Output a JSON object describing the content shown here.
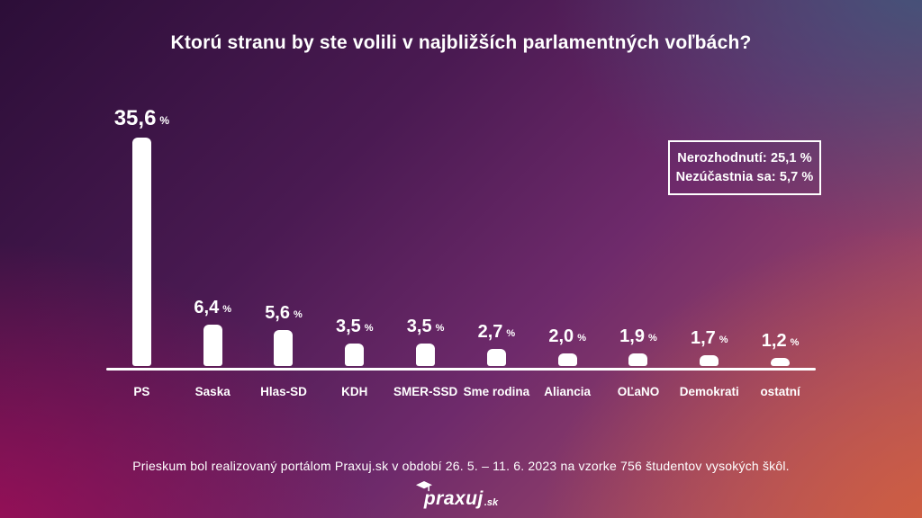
{
  "title": "Ktorú stranu by ste volili v najbližších parlamentných voľbách?",
  "chart_data": {
    "type": "bar",
    "title": "Ktorú stranu by ste volili v najbližších parlamentných voľbách?",
    "categories": [
      "PS",
      "Saska",
      "Hlas-SD",
      "KDH",
      "SMER-SSD",
      "Sme rodina",
      "Aliancia",
      "OĽaNO",
      "Demokrati",
      "ostatní"
    ],
    "values": [
      35.6,
      6.4,
      5.6,
      3.5,
      3.5,
      2.7,
      2.0,
      1.9,
      1.7,
      1.2
    ],
    "value_labels": [
      "35,6",
      "6,4",
      "5,6",
      "3,5",
      "3,5",
      "2,7",
      "2,0",
      "1,9",
      "1,7",
      "1,2"
    ],
    "unit": "%",
    "ylim": [
      0,
      40
    ],
    "grid": false,
    "legend_position": "top-right",
    "bar_color": "#ffffff",
    "annotations": [
      "Nerozhodnutí: 25,1 %",
      "Nezúčastnia sa: 5,7 %"
    ]
  },
  "legend_box": {
    "line1": "Nerozhodnutí: 25,1 %",
    "line2": "Nezúčastnia sa: 5,7 %"
  },
  "footer": {
    "note": "Prieskum bol realizovaný portálom Praxuj.sk v období 26. 5. – 11. 6. 2023 na vzorke 756 študentov vysokých škôl."
  },
  "logo": {
    "text": "praxuj",
    "suffix": ".sk"
  },
  "colors": {
    "text": "#ffffff",
    "bar": "#ffffff",
    "bg_top_left": "#2c0e38",
    "bg_top_right": "#41567a",
    "bg_center": "#6e2a6b",
    "bg_bottom_left": "#a60f58",
    "bg_bottom_right": "#d2603e"
  }
}
